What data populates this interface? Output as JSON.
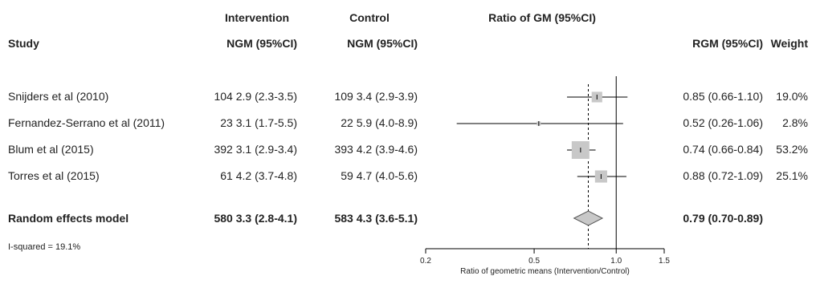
{
  "chart_data": {
    "type": "forest",
    "title": "Ratio of GM (95%CI)",
    "xlabel": "Ratio of geometric means (Intervention/Control)",
    "xscale": "log",
    "xlim": [
      0.2,
      1.5
    ],
    "xticks": [
      0.2,
      0.5,
      1.0,
      1.5
    ],
    "xtick_labels": [
      "0.2",
      "0.5",
      "1.0",
      "1.5"
    ],
    "null_line": 1.0,
    "pooled_line": 0.79,
    "columns": {
      "study": "Study",
      "intervention_group": "Intervention",
      "intervention": "NGM (95%CI)",
      "control_group": "Control",
      "control": "NGM (95%CI)",
      "rgm": "RGM (95%CI)",
      "weight": "Weight"
    },
    "studies": [
      {
        "name": "Snijders et al (2010)",
        "int_n": "104",
        "int_ngm": "2.9 (2.3-3.5)",
        "ctl_n": "109",
        "ctl_ngm": "3.4 (2.9-3.9)",
        "rgm_text": "0.85 (0.66-1.10)",
        "weight_text": "19.0%",
        "est": 0.85,
        "lo": 0.66,
        "hi": 1.1,
        "weight": 19.0
      },
      {
        "name": "Fernandez-Serrano et al (2011)",
        "int_n": "23",
        "int_ngm": "3.1 (1.7-5.5)",
        "ctl_n": "22",
        "ctl_ngm": "5.9 (4.0-8.9)",
        "rgm_text": "0.52 (0.26-1.06)",
        "weight_text": "2.8%",
        "est": 0.52,
        "lo": 0.26,
        "hi": 1.06,
        "weight": 2.8
      },
      {
        "name": "Blum et al (2015)",
        "int_n": "392",
        "int_ngm": "3.1 (2.9-3.4)",
        "ctl_n": "393",
        "ctl_ngm": "4.2 (3.9-4.6)",
        "rgm_text": "0.74 (0.66-0.84)",
        "weight_text": "53.2%",
        "est": 0.74,
        "lo": 0.66,
        "hi": 0.84,
        "weight": 53.2
      },
      {
        "name": "Torres et al (2015)",
        "int_n": "61",
        "int_ngm": "4.2 (3.7-4.8)",
        "ctl_n": "59",
        "ctl_ngm": "4.7 (4.0-5.6)",
        "rgm_text": "0.88 (0.72-1.09)",
        "weight_text": "25.1%",
        "est": 0.88,
        "lo": 0.72,
        "hi": 1.09,
        "weight": 25.1
      }
    ],
    "pooled": {
      "name": "Random effects model",
      "int_n": "580",
      "int_ngm": "3.3 (2.8-4.1)",
      "ctl_n": "583",
      "ctl_ngm": "4.3 (3.6-5.1)",
      "rgm_text": "0.79 (0.70-0.89)",
      "est": 0.79,
      "lo": 0.7,
      "hi": 0.89
    },
    "heterogeneity": "I-squared = 19.1%",
    "colors": {
      "box": "#c8c8c8",
      "diamond": "#c8c8c8",
      "line": "#000000",
      "text": "#222222"
    }
  }
}
